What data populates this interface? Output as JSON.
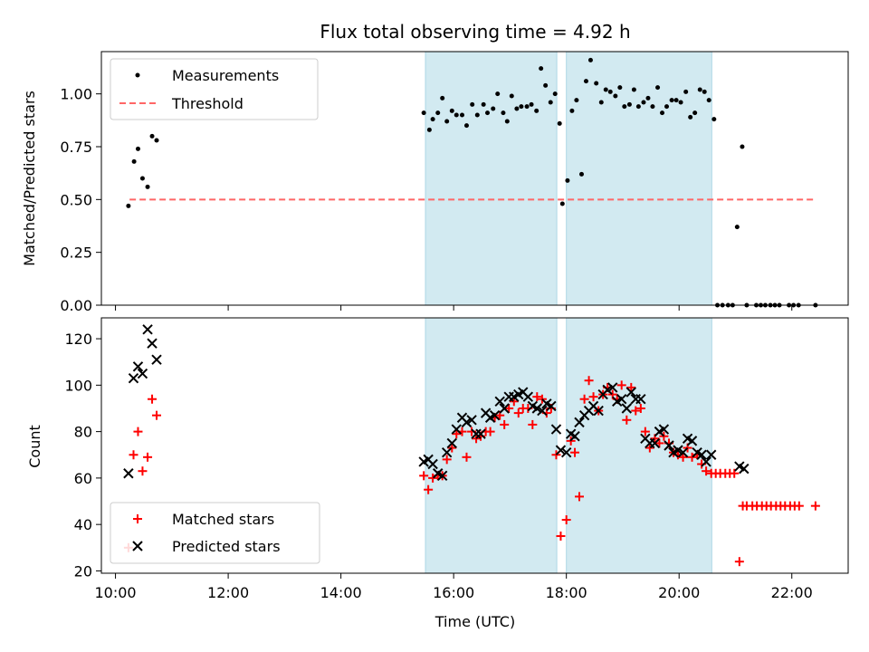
{
  "chart_data": {
    "title": "Flux total observing time = 4.92 h",
    "xlabel": "Time (UTC)",
    "x_ticks": [
      "10:00",
      "12:00",
      "14:00",
      "16:00",
      "18:00",
      "20:00",
      "22:00"
    ],
    "x_tick_hours": [
      10,
      12,
      14,
      16,
      18,
      20,
      22
    ],
    "xlim_hours": [
      9.75,
      23.0
    ],
    "shaded_intervals_hours": [
      [
        15.5,
        17.83
      ],
      [
        18.0,
        20.58
      ]
    ],
    "colors": {
      "shade": "#add8e6",
      "measure": "#000000",
      "threshold": "#ff6666",
      "matched": "#ff0000",
      "predicted": "#000000"
    },
    "top": {
      "type": "scatter",
      "ylabel": "Matched/Predicted stars",
      "ylim": [
        0,
        1.2
      ],
      "y_ticks": [
        "0.00",
        "0.25",
        "0.50",
        "0.75",
        "1.00"
      ],
      "y_tick_values": [
        0,
        0.25,
        0.5,
        0.75,
        1.0
      ],
      "legend": [
        "Measurements",
        "Threshold"
      ],
      "threshold": {
        "y": 0.5,
        "x_range": [
          10.25,
          22.42
        ]
      },
      "measurements": [
        [
          10.23,
          0.47
        ],
        [
          10.33,
          0.68
        ],
        [
          10.4,
          0.74
        ],
        [
          10.48,
          0.6
        ],
        [
          10.57,
          0.56
        ],
        [
          10.65,
          0.8
        ],
        [
          10.73,
          0.78
        ],
        [
          15.47,
          0.91
        ],
        [
          15.57,
          0.83
        ],
        [
          15.63,
          0.88
        ],
        [
          15.72,
          0.91
        ],
        [
          15.8,
          0.98
        ],
        [
          15.88,
          0.87
        ],
        [
          15.97,
          0.92
        ],
        [
          16.05,
          0.9
        ],
        [
          16.15,
          0.9
        ],
        [
          16.23,
          0.85
        ],
        [
          16.33,
          0.95
        ],
        [
          16.42,
          0.9
        ],
        [
          16.53,
          0.95
        ],
        [
          16.6,
          0.91
        ],
        [
          16.7,
          0.93
        ],
        [
          16.78,
          1.0
        ],
        [
          16.88,
          0.91
        ],
        [
          16.95,
          0.87
        ],
        [
          17.03,
          0.99
        ],
        [
          17.12,
          0.93
        ],
        [
          17.2,
          0.94
        ],
        [
          17.3,
          0.94
        ],
        [
          17.38,
          0.95
        ],
        [
          17.47,
          0.92
        ],
        [
          17.55,
          1.12
        ],
        [
          17.63,
          1.04
        ],
        [
          17.72,
          0.96
        ],
        [
          17.8,
          1.0
        ],
        [
          17.88,
          0.86
        ],
        [
          17.93,
          0.48
        ],
        [
          18.02,
          0.59
        ],
        [
          18.1,
          0.92
        ],
        [
          18.18,
          0.97
        ],
        [
          18.27,
          0.62
        ],
        [
          18.35,
          1.06
        ],
        [
          18.43,
          1.16
        ],
        [
          18.53,
          1.05
        ],
        [
          18.62,
          0.96
        ],
        [
          18.7,
          1.02
        ],
        [
          18.78,
          1.01
        ],
        [
          18.87,
          0.99
        ],
        [
          18.95,
          1.03
        ],
        [
          19.03,
          0.94
        ],
        [
          19.12,
          0.95
        ],
        [
          19.2,
          1.02
        ],
        [
          19.28,
          0.94
        ],
        [
          19.37,
          0.96
        ],
        [
          19.45,
          0.98
        ],
        [
          19.53,
          0.94
        ],
        [
          19.62,
          1.03
        ],
        [
          19.7,
          0.91
        ],
        [
          19.78,
          0.94
        ],
        [
          19.87,
          0.97
        ],
        [
          19.95,
          0.97
        ],
        [
          20.03,
          0.96
        ],
        [
          20.12,
          1.01
        ],
        [
          20.2,
          0.89
        ],
        [
          20.28,
          0.91
        ],
        [
          20.37,
          1.02
        ],
        [
          20.45,
          1.01
        ],
        [
          20.53,
          0.97
        ],
        [
          20.62,
          0.88
        ],
        [
          20.68,
          0.0
        ],
        [
          20.77,
          0.0
        ],
        [
          20.87,
          0.0
        ],
        [
          20.95,
          0.0
        ],
        [
          21.03,
          0.37
        ],
        [
          21.12,
          0.75
        ],
        [
          21.2,
          0.0
        ],
        [
          21.37,
          0.0
        ],
        [
          21.45,
          0.0
        ],
        [
          21.53,
          0.0
        ],
        [
          21.62,
          0.0
        ],
        [
          21.7,
          0.0
        ],
        [
          21.78,
          0.0
        ],
        [
          21.95,
          0.0
        ],
        [
          22.03,
          0.0
        ],
        [
          22.12,
          0.0
        ],
        [
          22.42,
          0.0
        ]
      ]
    },
    "bottom": {
      "type": "scatter",
      "ylabel": "Count",
      "ylim": [
        19,
        129
      ],
      "y_ticks": [
        "20",
        "40",
        "60",
        "80",
        "100",
        "120"
      ],
      "y_tick_values": [
        20,
        40,
        60,
        80,
        100,
        120
      ],
      "legend": [
        "Matched stars",
        "Predicted stars"
      ],
      "series": [
        {
          "name": "Matched stars",
          "marker": "plus",
          "points": [
            [
              10.23,
              30
            ],
            [
              10.32,
              70
            ],
            [
              10.4,
              80
            ],
            [
              10.48,
              63
            ],
            [
              10.57,
              69
            ],
            [
              10.65,
              94
            ],
            [
              10.73,
              87
            ],
            [
              15.47,
              61
            ],
            [
              15.55,
              55
            ],
            [
              15.63,
              60
            ],
            [
              15.72,
              61
            ],
            [
              15.8,
              61
            ],
            [
              15.88,
              68
            ],
            [
              15.97,
              73
            ],
            [
              16.05,
              79
            ],
            [
              16.15,
              80
            ],
            [
              16.23,
              69
            ],
            [
              16.32,
              80
            ],
            [
              16.4,
              77
            ],
            [
              16.48,
              78
            ],
            [
              16.57,
              80
            ],
            [
              16.65,
              80
            ],
            [
              16.73,
              86
            ],
            [
              16.82,
              87
            ],
            [
              16.9,
              83
            ],
            [
              16.98,
              90
            ],
            [
              17.07,
              93
            ],
            [
              17.15,
              88
            ],
            [
              17.23,
              90
            ],
            [
              17.32,
              90
            ],
            [
              17.4,
              83
            ],
            [
              17.48,
              95
            ],
            [
              17.57,
              94
            ],
            [
              17.65,
              88
            ],
            [
              17.73,
              90
            ],
            [
              17.82,
              70
            ],
            [
              17.9,
              35
            ],
            [
              18.0,
              42
            ],
            [
              18.08,
              76
            ],
            [
              18.15,
              71
            ],
            [
              18.23,
              52
            ],
            [
              18.32,
              94
            ],
            [
              18.4,
              102
            ],
            [
              18.48,
              95
            ],
            [
              18.57,
              89
            ],
            [
              18.65,
              96
            ],
            [
              18.73,
              99
            ],
            [
              18.82,
              96
            ],
            [
              18.9,
              94
            ],
            [
              18.98,
              100
            ],
            [
              19.07,
              85
            ],
            [
              19.15,
              99
            ],
            [
              19.23,
              89
            ],
            [
              19.32,
              90
            ],
            [
              19.4,
              80
            ],
            [
              19.48,
              73
            ],
            [
              19.57,
              77
            ],
            [
              19.65,
              75
            ],
            [
              19.73,
              78
            ],
            [
              19.82,
              75
            ],
            [
              19.9,
              71
            ],
            [
              19.98,
              70
            ],
            [
              20.07,
              69
            ],
            [
              20.15,
              73
            ],
            [
              20.23,
              69
            ],
            [
              20.32,
              70
            ],
            [
              20.4,
              66
            ],
            [
              20.48,
              63
            ],
            [
              20.57,
              62
            ],
            [
              20.65,
              62
            ],
            [
              20.73,
              62
            ],
            [
              20.82,
              62
            ],
            [
              20.9,
              62
            ],
            [
              20.98,
              62
            ],
            [
              21.07,
              24
            ],
            [
              21.13,
              48
            ],
            [
              21.2,
              48
            ],
            [
              21.3,
              48
            ],
            [
              21.38,
              48
            ],
            [
              21.47,
              48
            ],
            [
              21.55,
              48
            ],
            [
              21.63,
              48
            ],
            [
              21.72,
              48
            ],
            [
              21.8,
              48
            ],
            [
              21.88,
              48
            ],
            [
              21.97,
              48
            ],
            [
              22.05,
              48
            ],
            [
              22.13,
              48
            ],
            [
              22.42,
              48
            ]
          ]
        },
        {
          "name": "Predicted stars",
          "marker": "x",
          "points": [
            [
              10.23,
              62
            ],
            [
              10.32,
              103
            ],
            [
              10.4,
              108
            ],
            [
              10.48,
              105
            ],
            [
              10.57,
              124
            ],
            [
              10.65,
              118
            ],
            [
              10.73,
              111
            ],
            [
              15.47,
              67
            ],
            [
              15.55,
              68
            ],
            [
              15.63,
              66
            ],
            [
              15.72,
              62
            ],
            [
              15.8,
              61
            ],
            [
              15.88,
              71
            ],
            [
              15.97,
              75
            ],
            [
              16.05,
              81
            ],
            [
              16.15,
              86
            ],
            [
              16.23,
              84
            ],
            [
              16.32,
              85
            ],
            [
              16.4,
              79
            ],
            [
              16.48,
              79
            ],
            [
              16.57,
              88
            ],
            [
              16.65,
              86
            ],
            [
              16.73,
              87
            ],
            [
              16.82,
              93
            ],
            [
              16.9,
              90
            ],
            [
              16.98,
              95
            ],
            [
              17.07,
              95
            ],
            [
              17.15,
              96
            ],
            [
              17.23,
              97
            ],
            [
              17.32,
              95
            ],
            [
              17.4,
              91
            ],
            [
              17.48,
              90
            ],
            [
              17.57,
              89
            ],
            [
              17.65,
              92
            ],
            [
              17.73,
              91
            ],
            [
              17.82,
              81
            ],
            [
              17.9,
              72
            ],
            [
              18.0,
              71
            ],
            [
              18.08,
              79
            ],
            [
              18.15,
              78
            ],
            [
              18.23,
              84
            ],
            [
              18.32,
              87
            ],
            [
              18.4,
              89
            ],
            [
              18.48,
              91
            ],
            [
              18.57,
              89
            ],
            [
              18.65,
              96
            ],
            [
              18.73,
              98
            ],
            [
              18.82,
              99
            ],
            [
              18.9,
              93
            ],
            [
              18.98,
              94
            ],
            [
              19.07,
              90
            ],
            [
              19.15,
              97
            ],
            [
              19.23,
              94
            ],
            [
              19.32,
              94
            ],
            [
              19.4,
              77
            ],
            [
              19.48,
              75
            ],
            [
              19.57,
              75
            ],
            [
              19.65,
              80
            ],
            [
              19.73,
              81
            ],
            [
              19.82,
              74
            ],
            [
              19.9,
              71
            ],
            [
              19.98,
              72
            ],
            [
              20.07,
              71
            ],
            [
              20.15,
              77
            ],
            [
              20.23,
              76
            ],
            [
              20.32,
              71
            ],
            [
              20.4,
              70
            ],
            [
              20.48,
              67
            ],
            [
              20.57,
              70
            ],
            [
              21.07,
              65
            ],
            [
              21.15,
              64
            ]
          ]
        }
      ]
    }
  }
}
